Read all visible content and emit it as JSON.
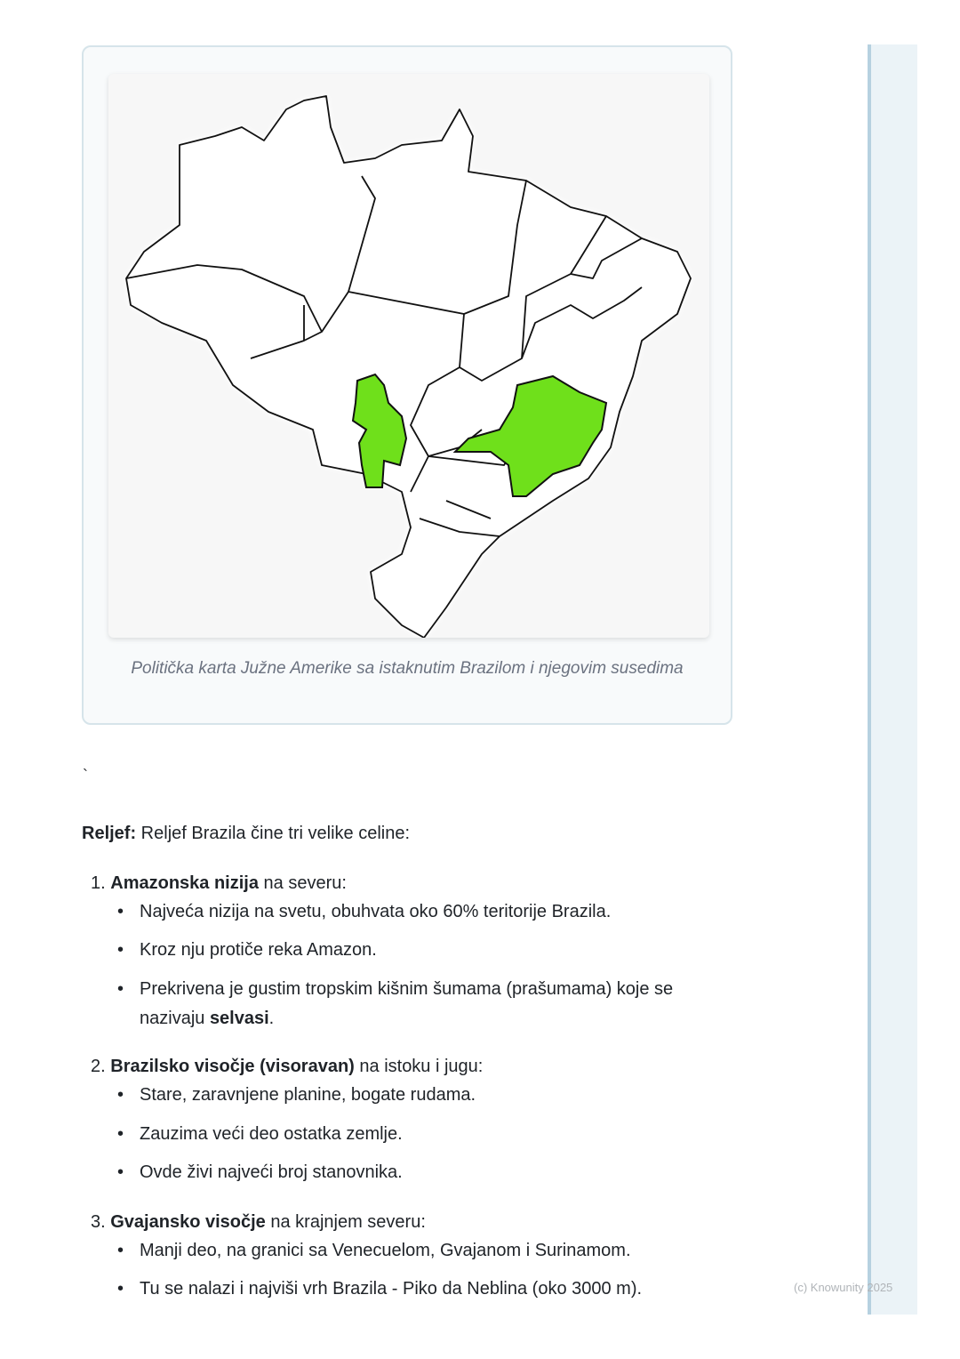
{
  "figure": {
    "caption": "Politička karta Južne Amerike sa istaknutim Brazilom i njegovim susedima",
    "highlight_color": "#6fe01b"
  },
  "stray_mark": "`",
  "relief": {
    "label": "Reljef:",
    "intro": " Reljef Brazila čine tri velike celine:",
    "items": [
      {
        "num": "1.",
        "title": "Amazonska nizija",
        "rest": " na severu:",
        "bullets": [
          "Najveća nizija na svetu, obuhvata oko 60% teritorije Brazila.",
          "Kroz nju protiče reka Amazon."
        ],
        "bullet3_pre": "Prekrivena je gustim tropskim kišnim šumama (prašumama) koje se nazivaju ",
        "bullet3_bold": "selvasi",
        "bullet3_post": "."
      },
      {
        "num": "2.",
        "title": "Brazilsko visočje (visoravan)",
        "rest": " na istoku i jugu:",
        "bullets": [
          "Stare, zaravnjene planine, bogate rudama.",
          "Zauzima veći deo ostatka zemlje.",
          "Ovde živi najveći broj stanovnika."
        ]
      },
      {
        "num": "3.",
        "title": "Gvajansko visočje",
        "rest": " na krajnjem severu:",
        "bullets": [
          "Manji deo, na granici sa Venecuelom, Gvajanom i Surinamom.",
          "Tu se nalazi i najviši vrh Brazila - Piko da Neblina (oko 3000 m)."
        ]
      }
    ]
  },
  "footer": {
    "copyright": "(c) Knowunity 2025"
  }
}
